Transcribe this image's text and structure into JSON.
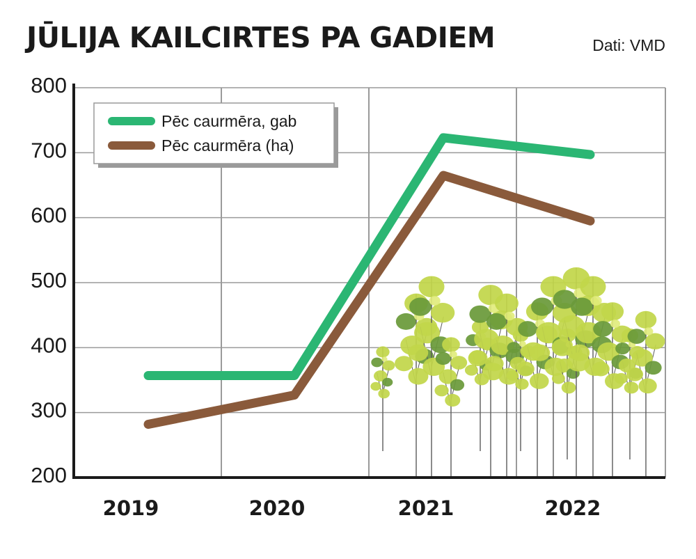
{
  "header": {
    "title": "JŪLIJA KAILCIRTES PA GADIEM",
    "source": "Dati: VMD"
  },
  "colors": {
    "series_green": "#2bb673",
    "series_brown": "#8a5a3b",
    "tree_light": "#c2d64a",
    "tree_dark": "#6a9a3a",
    "grid": "#9a9a9a"
  },
  "decoration": {
    "trees": "birch-tree-illustration"
  },
  "chart_data": {
    "type": "line",
    "categories": [
      "2019",
      "2020",
      "2021",
      "2022"
    ],
    "ylim": [
      200,
      800
    ],
    "yticks": [
      200,
      300,
      400,
      500,
      600,
      700,
      800
    ],
    "grid": true,
    "legend_position": "top-left",
    "series": [
      {
        "name": "Pēc caurmēra, gab",
        "color": "#2bb673",
        "values": [
          357,
          357,
          723,
          697
        ]
      },
      {
        "name": "Pēc caurmēra (ha)",
        "color": "#8a5a3b",
        "values": [
          282,
          327,
          665,
          595
        ]
      }
    ]
  }
}
